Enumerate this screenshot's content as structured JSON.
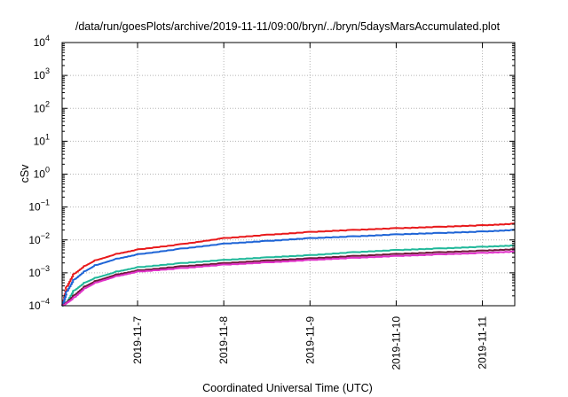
{
  "chart_data": {
    "type": "line",
    "title": "/data/run/goesPlots/archive/2019-11-11/09:00/bryn/../bryn/5daysMarsAccumulated.plot",
    "xlabel": "Coordinated Universal Time (UTC)",
    "ylabel": "cSv",
    "x_range": [
      "2019-11-06T03:00",
      "2019-11-11T09:00"
    ],
    "x_ticks": [
      "2019-11-7",
      "2019-11-8",
      "2019-11-9",
      "2019-11-10",
      "2019-11-11"
    ],
    "y_scale": "log",
    "y_range": [
      0.0001,
      10000
    ],
    "y_ticks": [
      {
        "base": "10",
        "exp": "-4"
      },
      {
        "base": "10",
        "exp": "-3"
      },
      {
        "base": "10",
        "exp": "-2"
      },
      {
        "base": "10",
        "exp": "-1"
      },
      {
        "base": "10",
        "exp": "0"
      },
      {
        "base": "10",
        "exp": "1"
      },
      {
        "base": "10",
        "exp": "2"
      },
      {
        "base": "10",
        "exp": "3"
      },
      {
        "base": "10",
        "exp": "4"
      }
    ],
    "grid": true,
    "series": [
      {
        "color": "#e8191b",
        "x": [
          "2019-11-06T03:00",
          "2019-11-06T04:00",
          "2019-11-06T06:00",
          "2019-11-06T09:00",
          "2019-11-06T12:00",
          "2019-11-06T18:00",
          "2019-11-07T00:00",
          "2019-11-07T12:00",
          "2019-11-08T00:00",
          "2019-11-08T12:00",
          "2019-11-09T00:00",
          "2019-11-09T12:00",
          "2019-11-10T00:00",
          "2019-11-10T12:00",
          "2019-11-11T00:00",
          "2019-11-11T09:00"
        ],
        "values": [
          0.0001,
          0.00035,
          0.0009,
          0.0016,
          0.0024,
          0.0038,
          0.0052,
          0.0075,
          0.0115,
          0.0145,
          0.0178,
          0.0205,
          0.023,
          0.0255,
          0.0283,
          0.0315
        ]
      },
      {
        "color": "#1e64d6",
        "x": [
          "2019-11-06T03:00",
          "2019-11-06T04:00",
          "2019-11-06T06:00",
          "2019-11-06T09:00",
          "2019-11-06T12:00",
          "2019-11-06T18:00",
          "2019-11-07T00:00",
          "2019-11-07T12:00",
          "2019-11-08T00:00",
          "2019-11-08T12:00",
          "2019-11-09T00:00",
          "2019-11-09T12:00",
          "2019-11-10T00:00",
          "2019-11-10T12:00",
          "2019-11-11T00:00",
          "2019-11-11T09:00"
        ],
        "values": [
          0.0001,
          0.00025,
          0.0006,
          0.0011,
          0.0017,
          0.0027,
          0.0037,
          0.0055,
          0.0078,
          0.0095,
          0.0115,
          0.013,
          0.015,
          0.0165,
          0.0183,
          0.0205
        ]
      },
      {
        "color": "#20b89a",
        "x": [
          "2019-11-06T03:00",
          "2019-11-06T04:00",
          "2019-11-06T06:00",
          "2019-11-06T09:00",
          "2019-11-06T12:00",
          "2019-11-06T18:00",
          "2019-11-07T00:00",
          "2019-11-07T12:00",
          "2019-11-08T00:00",
          "2019-11-08T12:00",
          "2019-11-09T00:00",
          "2019-11-09T12:00",
          "2019-11-10T00:00",
          "2019-11-10T12:00",
          "2019-11-11T00:00",
          "2019-11-11T09:00"
        ],
        "values": [
          0.0001,
          0.00012,
          0.00028,
          0.0005,
          0.0007,
          0.0011,
          0.0015,
          0.002,
          0.0025,
          0.003,
          0.0035,
          0.0043,
          0.005,
          0.0056,
          0.0063,
          0.0069
        ]
      },
      {
        "color": "#6e1a3a",
        "x": [
          "2019-11-06T03:00",
          "2019-11-06T06:00",
          "2019-11-06T09:00",
          "2019-11-06T12:00",
          "2019-11-06T18:00",
          "2019-11-07T00:00",
          "2019-11-07T12:00",
          "2019-11-08T00:00",
          "2019-11-08T12:00",
          "2019-11-09T00:00",
          "2019-11-09T12:00",
          "2019-11-10T00:00",
          "2019-11-10T12:00",
          "2019-11-11T00:00",
          "2019-11-11T09:00"
        ],
        "values": [
          0.0001,
          0.0002,
          0.00038,
          0.00056,
          0.0009,
          0.0012,
          0.0016,
          0.002,
          0.0024,
          0.0028,
          0.0033,
          0.0038,
          0.0043,
          0.0048,
          0.0053
        ]
      },
      {
        "color": "#e030c8",
        "x": [
          "2019-11-06T03:00",
          "2019-11-06T06:00",
          "2019-11-06T09:00",
          "2019-11-06T12:00",
          "2019-11-06T18:00",
          "2019-11-07T00:00",
          "2019-11-07T12:00",
          "2019-11-08T00:00",
          "2019-11-08T12:00",
          "2019-11-09T00:00",
          "2019-11-09T12:00",
          "2019-11-10T00:00",
          "2019-11-10T12:00",
          "2019-11-11T00:00",
          "2019-11-11T09:00"
        ],
        "values": [
          0.0001,
          0.00017,
          0.00033,
          0.0005,
          0.0008,
          0.0011,
          0.0014,
          0.0018,
          0.0021,
          0.0025,
          0.0029,
          0.0033,
          0.0037,
          0.0041,
          0.0045
        ]
      }
    ]
  }
}
